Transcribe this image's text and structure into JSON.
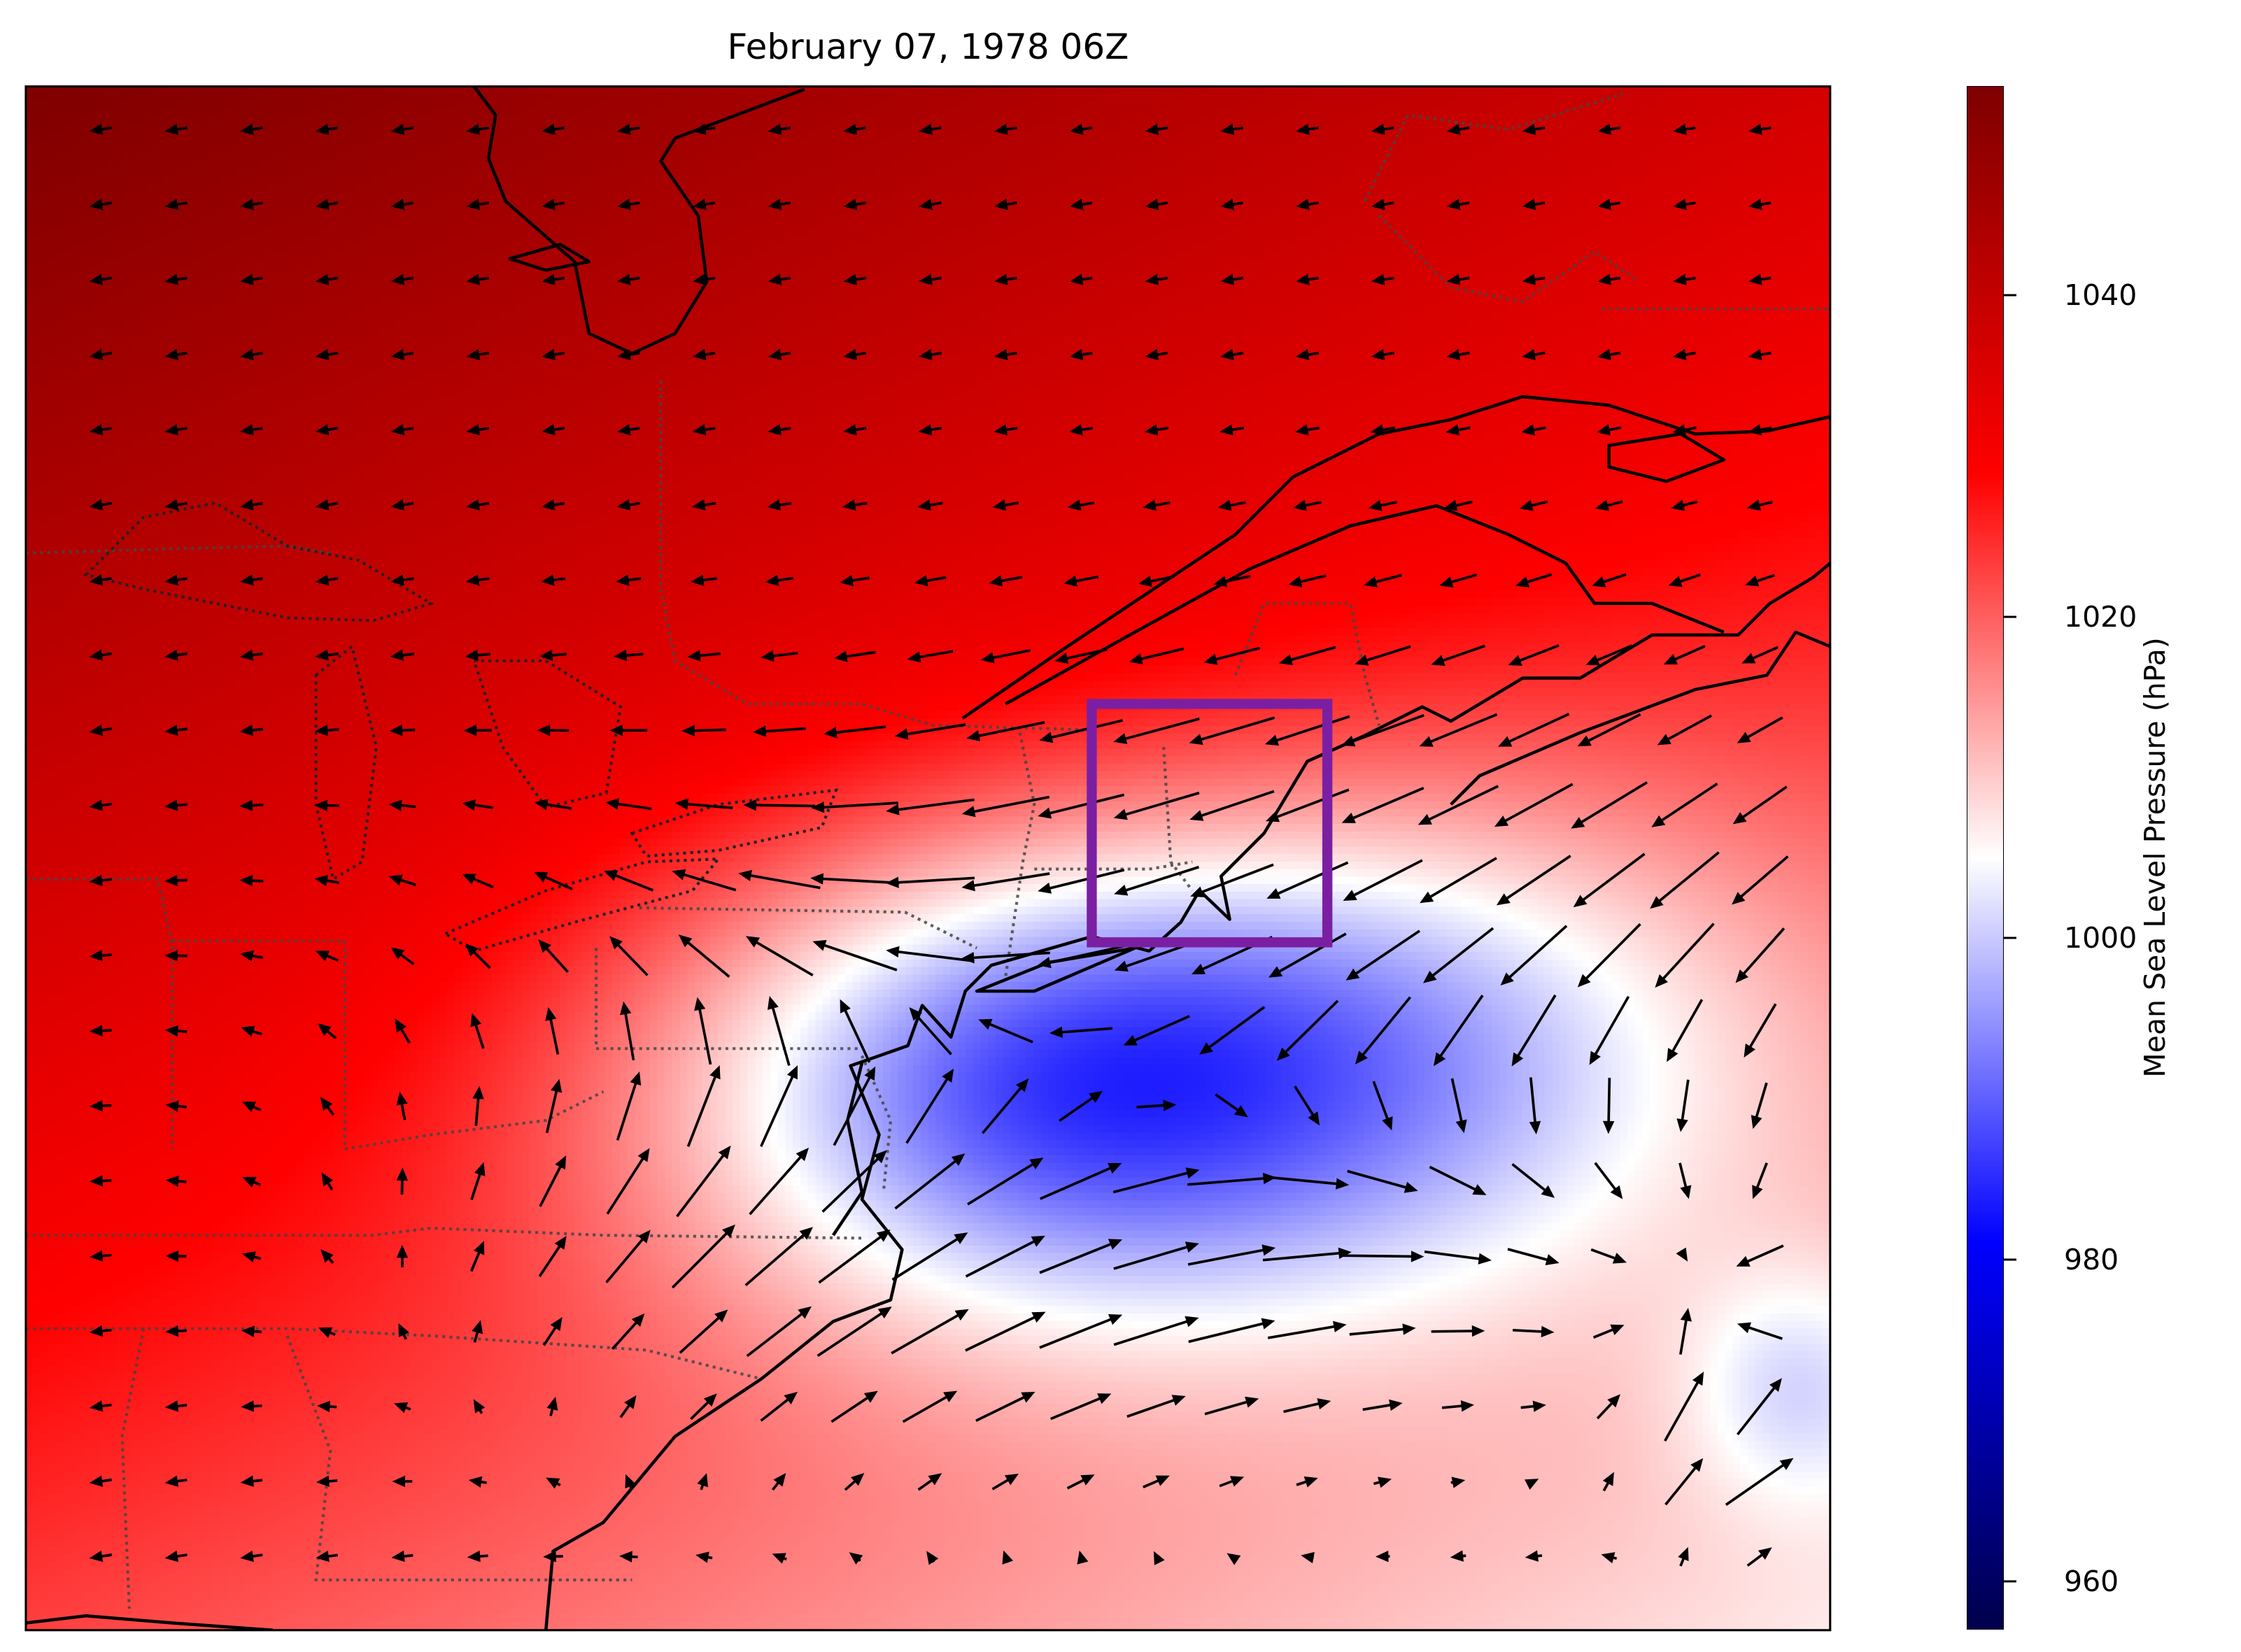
{
  "title": "February 07, 1978 06Z",
  "colorbar": {
    "label": "Mean Sea Level Pressure (hPa)",
    "range": [
      957,
      1053
    ],
    "ticks": [
      {
        "value": 1040,
        "label": "1040"
      },
      {
        "value": 1020,
        "label": "1020"
      },
      {
        "value": 1000,
        "label": "1000"
      },
      {
        "value": 980,
        "label": "980"
      },
      {
        "value": 960,
        "label": "960"
      }
    ],
    "colormap": [
      "#00004c",
      "#0000ff",
      "#ffffff",
      "#ff0000",
      "#7f0000"
    ]
  },
  "map": {
    "field": "Mean Sea Level Pressure",
    "vectors": "wind",
    "coastline_color": "#000000",
    "border_color": "#444444",
    "highlight_box_color": "#7b1fa2"
  }
}
